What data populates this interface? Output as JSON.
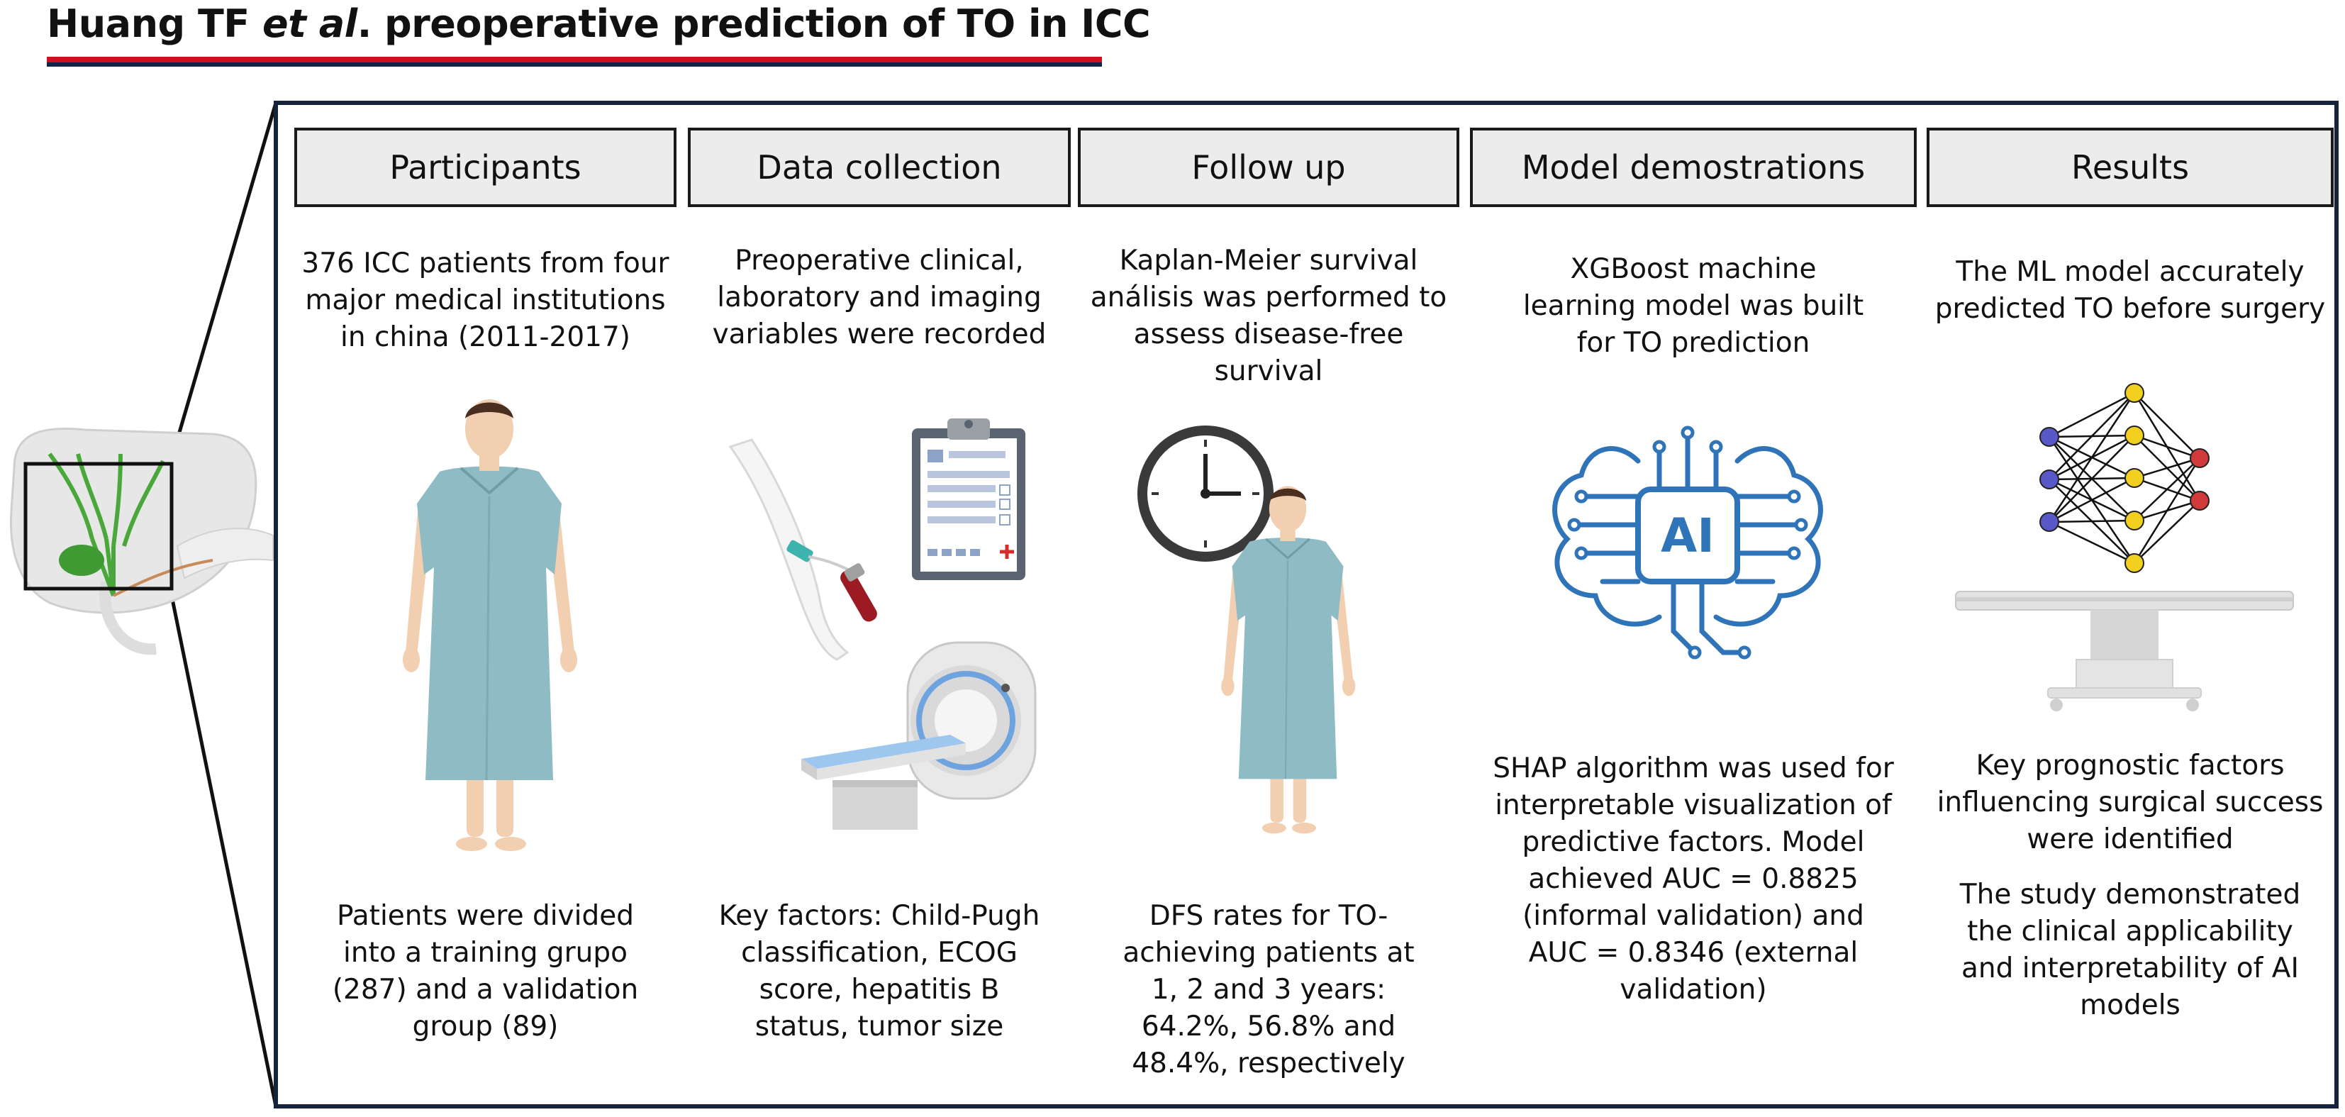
{
  "title": {
    "prefix": "Huang TF ",
    "italic": "et al",
    "suffix": ". preoperative prediction of TO in ICC"
  },
  "columns": [
    {
      "header": "Participants",
      "top_text": [
        "376 ICC patients from four",
        "major medical institutions",
        "in china (2011-2017)"
      ],
      "bottom_text": [
        "Patients were divided",
        "into a training grupo",
        "(287) and a validation",
        "group (89)"
      ]
    },
    {
      "header": "Data collection",
      "top_text": [
        "Preoperative clinical,",
        "laboratory and imaging",
        "variables were recorded"
      ],
      "bottom_text": [
        "Key factors: Child-Pugh",
        "classification, ECOG",
        "score, hepatitis B",
        "status, tumor size"
      ]
    },
    {
      "header": "Follow up",
      "top_text": [
        "Kaplan-Meier survival",
        "análisis was performed to",
        "assess disease-free survival"
      ],
      "bottom_text": [
        "DFS rates for TO-",
        "achieving patients at",
        "1, 2 and 3 years:",
        "64.2%, 56.8% and",
        "48.4%, respectively"
      ]
    },
    {
      "header": "Model demostrations",
      "top_text": [
        "XGBoost machine",
        "learning model was built",
        "for TO prediction"
      ],
      "bottom_text": [
        "SHAP algorithm was used for",
        "interpretable visualization of",
        "predictive factors. Model",
        "achieved AUC = 0.8825",
        "(informal validation) and",
        "AUC = 0.8346 (external",
        "validation)"
      ]
    },
    {
      "header": "Results",
      "top_text": [
        "The ML model accurately",
        "predicted TO before surgery"
      ],
      "bottom_text": [
        "Key prognostic factors",
        "influencing surgical success",
        "were identified",
        "",
        "The study demonstrated",
        "the clinical applicability",
        "and interpretability of AI models"
      ]
    }
  ],
  "ai_chip_label": "AI",
  "colors": {
    "title_underline_red": "#cf1020",
    "title_underline_navy": "#12234a",
    "frame": "#17233d",
    "gown": "#8fbcc4",
    "skin": "#f1cfb0",
    "ai_blue": "#2f73b8",
    "nn_input": "#5a57c9",
    "nn_hidden": "#f2d020",
    "nn_output": "#d13a3a"
  }
}
